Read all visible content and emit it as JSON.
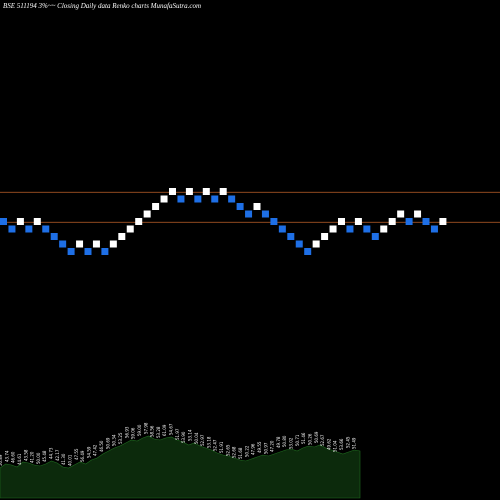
{
  "header": {
    "title": "BSE 511194  3%~~ Closing Daily data  Renko  charts MunafaSutra.com"
  },
  "colors": {
    "background": "#000000",
    "up_brick": "#ffffff",
    "down_brick": "#1e6fe6",
    "level_line": "#c0622b",
    "volume_fill": "#0c2a0c",
    "volume_line": "#1f6b1f"
  },
  "chart_data": {
    "type": "renko",
    "title": "BSE 511194  3%~~ Closing Daily data  Renko  charts MunafaSutra.com",
    "brick_size_percent": 3,
    "bricks": [
      {
        "dir": "down",
        "level": 0
      },
      {
        "dir": "down",
        "level": -1
      },
      {
        "dir": "up",
        "level": 0
      },
      {
        "dir": "down",
        "level": -1
      },
      {
        "dir": "up",
        "level": 0
      },
      {
        "dir": "down",
        "level": -1
      },
      {
        "dir": "down",
        "level": -2
      },
      {
        "dir": "down",
        "level": -3
      },
      {
        "dir": "down",
        "level": -4
      },
      {
        "dir": "up",
        "level": -3
      },
      {
        "dir": "down",
        "level": -4
      },
      {
        "dir": "up",
        "level": -3
      },
      {
        "dir": "down",
        "level": -4
      },
      {
        "dir": "up",
        "level": -3
      },
      {
        "dir": "up",
        "level": -2
      },
      {
        "dir": "up",
        "level": -1
      },
      {
        "dir": "up",
        "level": 0
      },
      {
        "dir": "up",
        "level": 1
      },
      {
        "dir": "up",
        "level": 2
      },
      {
        "dir": "up",
        "level": 3
      },
      {
        "dir": "up",
        "level": 4
      },
      {
        "dir": "down",
        "level": 3
      },
      {
        "dir": "up",
        "level": 4
      },
      {
        "dir": "down",
        "level": 3
      },
      {
        "dir": "up",
        "level": 4
      },
      {
        "dir": "down",
        "level": 3
      },
      {
        "dir": "up",
        "level": 4
      },
      {
        "dir": "down",
        "level": 3
      },
      {
        "dir": "down",
        "level": 2
      },
      {
        "dir": "down",
        "level": 1
      },
      {
        "dir": "up",
        "level": 2
      },
      {
        "dir": "down",
        "level": 1
      },
      {
        "dir": "down",
        "level": 0
      },
      {
        "dir": "down",
        "level": -1
      },
      {
        "dir": "down",
        "level": -2
      },
      {
        "dir": "down",
        "level": -3
      },
      {
        "dir": "down",
        "level": -4
      },
      {
        "dir": "up",
        "level": -3
      },
      {
        "dir": "up",
        "level": -2
      },
      {
        "dir": "up",
        "level": -1
      },
      {
        "dir": "up",
        "level": 0
      },
      {
        "dir": "down",
        "level": -1
      },
      {
        "dir": "up",
        "level": 0
      },
      {
        "dir": "down",
        "level": -1
      },
      {
        "dir": "down",
        "level": -2
      },
      {
        "dir": "up",
        "level": -1
      },
      {
        "dir": "up",
        "level": 0
      },
      {
        "dir": "up",
        "level": 1
      },
      {
        "dir": "down",
        "level": 0
      },
      {
        "dir": "up",
        "level": 1
      },
      {
        "dir": "down",
        "level": 0
      },
      {
        "dir": "down",
        "level": -1
      },
      {
        "dir": "up",
        "level": 0
      }
    ],
    "reference_levels": [
      3.5,
      -0.5
    ],
    "volume_values": [
      30,
      34,
      33,
      31,
      36,
      35,
      33,
      32,
      34,
      37,
      35,
      31,
      30,
      33,
      36,
      34,
      38,
      40,
      44,
      47,
      50,
      52,
      55,
      58,
      57,
      60,
      62,
      59,
      58,
      60,
      61,
      58,
      56,
      53,
      55,
      52,
      50,
      48,
      45,
      43,
      42,
      40,
      38,
      37,
      39,
      41,
      43,
      42,
      44,
      46,
      48,
      49,
      47,
      50,
      52,
      51,
      53,
      50,
      48,
      46,
      44,
      46,
      48,
      47
    ],
    "volume_labels": [
      "50.89",
      "43.74",
      "46.60",
      "44.61",
      "43.58",
      "41.20",
      "50.00",
      "45.48",
      "44.73",
      "42.17",
      "41.30",
      "40.01",
      "47.55",
      "56.49",
      "54.59",
      "47.42",
      "46.50",
      "50.69",
      "50.34",
      "53.25",
      "56.93",
      "59.06",
      "59.00",
      "57.98",
      "58.56",
      "53.28",
      "61.09",
      "54.67",
      "51.97",
      "53.90",
      "53.14",
      "50.04",
      "52.97",
      "53.18",
      "52.47",
      "51.91",
      "52.65",
      "52.68",
      "51.68",
      "50.22",
      "47.96",
      "49.55",
      "50.97",
      "47.20",
      "49.78",
      "50.80",
      "53.02",
      "50.71",
      "51.46",
      "50.26",
      "50.69",
      "52.67",
      "49.62",
      "51.04",
      "53.66",
      "52.45",
      "51.49"
    ]
  }
}
